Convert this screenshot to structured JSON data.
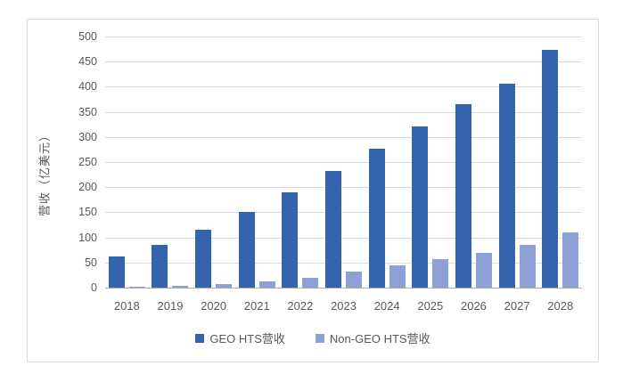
{
  "colors": {
    "frame_border": "#d9d9d9",
    "gridline": "#dcdcdc",
    "axis_line": "#ababab",
    "text": "#595959",
    "series_geo": "#3564ae",
    "series_nongeo": "#8ea1d6"
  },
  "chart_data": {
    "type": "bar",
    "title": "",
    "categories": [
      "2018",
      "2019",
      "2020",
      "2021",
      "2022",
      "2023",
      "2024",
      "2025",
      "2026",
      "2027",
      "2028"
    ],
    "series": [
      {
        "name": "GEO HTS营收",
        "color": "#3564ae",
        "values": [
          62,
          86,
          116,
          151,
          189,
          232,
          277,
          321,
          365,
          406,
          474
        ]
      },
      {
        "name": "Non-GEO HTS营收",
        "color": "#8ea1d6",
        "values": [
          2,
          4,
          7,
          13,
          19,
          32,
          44,
          57,
          70,
          86,
          110
        ]
      }
    ],
    "xlabel": "",
    "ylabel": "营收（亿美元）",
    "ylim": [
      0,
      500
    ],
    "ytick_step": 50,
    "yticks": [
      0,
      50,
      100,
      150,
      200,
      250,
      300,
      350,
      400,
      450,
      500
    ],
    "grid": true,
    "legend_position": "bottom"
  }
}
